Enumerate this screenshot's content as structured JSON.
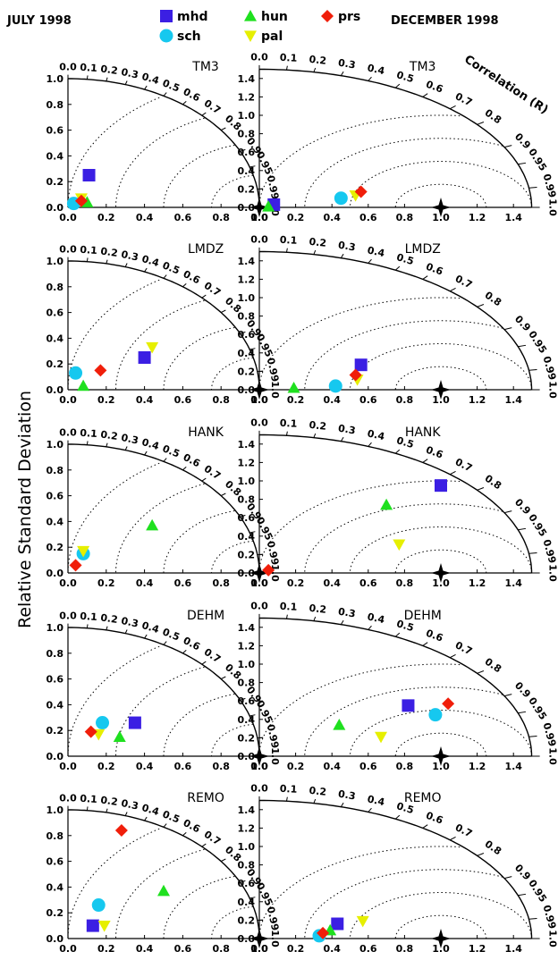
{
  "header": {
    "left": "JULY 1998",
    "right": "DECEMBER 1998"
  },
  "y_label": "Relative Standard Deviation",
  "r_label": "Correlation (R)",
  "chart_data": [
    {
      "type": "taylor",
      "title": "TM3",
      "reference": 1,
      "xlim": [
        0,
        1
      ],
      "ylim": [
        0,
        1
      ],
      "xticks": [
        {
          "value": 0,
          "label": "0.0"
        },
        0.2,
        0.4,
        0.6,
        0.8,
        {
          "value": 1,
          "label": "1.0"
        }
      ],
      "yticks": [
        {
          "value": 0,
          "label": "0.0"
        },
        0.2,
        0.4,
        0.6,
        0.8,
        {
          "value": 1,
          "label": "1.0"
        }
      ],
      "rticks": [
        {
          "value": 0,
          "label": "0.0"
        },
        0.1,
        0.2,
        0.3,
        0.4,
        0.5,
        0.6,
        0.7,
        0.8,
        0.9,
        0.95,
        0.99,
        {
          "value": 1,
          "label": "1.0"
        }
      ],
      "series": [
        {
          "name": "mhd",
          "color": "#3b1fe3",
          "marker": "square",
          "x": [
            0.11
          ],
          "y": [
            0.25
          ]
        },
        {
          "name": "sch",
          "color": "#16c8ef",
          "marker": "circle",
          "x": [
            0.03
          ],
          "y": [
            0.03
          ]
        },
        {
          "name": "hun",
          "color": "#1fe01f",
          "marker": "triangle-up",
          "x": [
            0.1
          ],
          "y": [
            0.04
          ]
        },
        {
          "name": "pal",
          "color": "#e6ef00",
          "marker": "triangle-down",
          "x": [
            0.07
          ],
          "y": [
            0.07
          ]
        },
        {
          "name": "prs",
          "color": "#f01e0a",
          "marker": "diamond",
          "x": [
            0.07
          ],
          "y": [
            0.05
          ]
        }
      ]
    },
    {
      "type": "taylor",
      "title": "TM3",
      "reference": 1,
      "xlim": [
        0,
        1.5
      ],
      "ylim": [
        0,
        1.5
      ],
      "xticks": [
        {
          "value": 0,
          "label": "0.0"
        },
        0.2,
        0.4,
        0.6,
        0.8,
        {
          "value": 1,
          "label": "1.0"
        },
        1.2,
        1.4
      ],
      "yticks": [
        {
          "value": 0,
          "label": "0.0"
        },
        0.2,
        0.4,
        0.6,
        0.8,
        {
          "value": 1,
          "label": "1.0"
        },
        1.2,
        1.4
      ],
      "rticks": [
        {
          "value": 0,
          "label": "0.0"
        },
        0.1,
        0.2,
        0.3,
        0.4,
        0.5,
        0.6,
        0.7,
        0.8,
        0.9,
        0.95,
        0.99,
        {
          "value": 1,
          "label": "1.0"
        }
      ],
      "series": [
        {
          "name": "mhd",
          "color": "#3b1fe3",
          "marker": "square",
          "x": [
            0.08
          ],
          "y": [
            0.03
          ]
        },
        {
          "name": "sch",
          "color": "#16c8ef",
          "marker": "circle",
          "x": [
            0.45
          ],
          "y": [
            0.1
          ]
        },
        {
          "name": "hun",
          "color": "#1fe01f",
          "marker": "triangle-up",
          "x": [
            0.05
          ],
          "y": [
            0.01
          ]
        },
        {
          "name": "pal",
          "color": "#e6ef00",
          "marker": "triangle-down",
          "x": [
            0.53
          ],
          "y": [
            0.13
          ]
        },
        {
          "name": "prs",
          "color": "#f01e0a",
          "marker": "diamond",
          "x": [
            0.56
          ],
          "y": [
            0.17
          ]
        }
      ]
    },
    {
      "type": "taylor",
      "title": "LMDZ",
      "reference": 1,
      "xlim": [
        0,
        1
      ],
      "ylim": [
        0,
        1
      ],
      "xticks": [
        {
          "value": 0,
          "label": "0.0"
        },
        0.2,
        0.4,
        0.6,
        0.8,
        {
          "value": 1,
          "label": "1.0"
        }
      ],
      "yticks": [
        {
          "value": 0,
          "label": "0.0"
        },
        0.2,
        0.4,
        0.6,
        0.8,
        {
          "value": 1,
          "label": "1.0"
        }
      ],
      "rticks": [
        {
          "value": 0,
          "label": "0.0"
        },
        0.1,
        0.2,
        0.3,
        0.4,
        0.5,
        0.6,
        0.7,
        0.8,
        0.9,
        0.95,
        0.99,
        {
          "value": 1,
          "label": "1.0"
        }
      ],
      "series": [
        {
          "name": "mhd",
          "color": "#3b1fe3",
          "marker": "square",
          "x": [
            0.4
          ],
          "y": [
            0.25
          ]
        },
        {
          "name": "sch",
          "color": "#16c8ef",
          "marker": "circle",
          "x": [
            0.04
          ],
          "y": [
            0.13
          ]
        },
        {
          "name": "hun",
          "color": "#1fe01f",
          "marker": "triangle-up",
          "x": [
            0.08
          ],
          "y": [
            0.03
          ]
        },
        {
          "name": "pal",
          "color": "#e6ef00",
          "marker": "triangle-down",
          "x": [
            0.44
          ],
          "y": [
            0.33
          ]
        },
        {
          "name": "prs",
          "color": "#f01e0a",
          "marker": "diamond",
          "x": [
            0.17
          ],
          "y": [
            0.15
          ]
        }
      ]
    },
    {
      "type": "taylor",
      "title": "LMDZ",
      "reference": 1,
      "xlim": [
        0,
        1.5
      ],
      "ylim": [
        0,
        1.5
      ],
      "xticks": [
        {
          "value": 0,
          "label": "0.0"
        },
        0.2,
        0.4,
        0.6,
        0.8,
        {
          "value": 1,
          "label": "1.0"
        },
        1.2,
        1.4
      ],
      "yticks": [
        {
          "value": 0,
          "label": "0.0"
        },
        0.2,
        0.4,
        0.6,
        0.8,
        {
          "value": 1,
          "label": "1.0"
        },
        1.2,
        1.4
      ],
      "rticks": [
        {
          "value": 0,
          "label": "0.0"
        },
        0.1,
        0.2,
        0.3,
        0.4,
        0.5,
        0.6,
        0.7,
        0.8,
        0.9,
        0.95,
        0.99,
        {
          "value": 1,
          "label": "1.0"
        }
      ],
      "series": [
        {
          "name": "mhd",
          "color": "#3b1fe3",
          "marker": "square",
          "x": [
            0.56
          ],
          "y": [
            0.27
          ]
        },
        {
          "name": "sch",
          "color": "#16c8ef",
          "marker": "circle",
          "x": [
            0.42
          ],
          "y": [
            0.04
          ]
        },
        {
          "name": "hun",
          "color": "#1fe01f",
          "marker": "triangle-up",
          "x": [
            0.19
          ],
          "y": [
            0.02
          ]
        },
        {
          "name": "pal",
          "color": "#e6ef00",
          "marker": "triangle-down",
          "x": [
            0.54
          ],
          "y": [
            0.11
          ]
        },
        {
          "name": "prs",
          "color": "#f01e0a",
          "marker": "diamond",
          "x": [
            0.53
          ],
          "y": [
            0.16
          ]
        }
      ]
    },
    {
      "type": "taylor",
      "title": "HANK",
      "reference": 1,
      "xlim": [
        0,
        1
      ],
      "ylim": [
        0,
        1
      ],
      "xticks": [
        {
          "value": 0,
          "label": "0.0"
        },
        0.2,
        0.4,
        0.6,
        0.8,
        {
          "value": 1,
          "label": "1.0"
        }
      ],
      "yticks": [
        {
          "value": 0,
          "label": "0.0"
        },
        0.2,
        0.4,
        0.6,
        0.8,
        {
          "value": 1,
          "label": "1.0"
        }
      ],
      "rticks": [
        {
          "value": 0,
          "label": "0.0"
        },
        0.1,
        0.2,
        0.3,
        0.4,
        0.5,
        0.6,
        0.7,
        0.8,
        0.9,
        0.95,
        0.99,
        {
          "value": 1,
          "label": "1.0"
        }
      ],
      "series": [
        {
          "name": "sch",
          "color": "#16c8ef",
          "marker": "circle",
          "x": [
            0.08
          ],
          "y": [
            0.15
          ]
        },
        {
          "name": "hun",
          "color": "#1fe01f",
          "marker": "triangle-up",
          "x": [
            0.44
          ],
          "y": [
            0.37
          ]
        },
        {
          "name": "pal",
          "color": "#e6ef00",
          "marker": "triangle-down",
          "x": [
            0.08
          ],
          "y": [
            0.17
          ]
        },
        {
          "name": "prs",
          "color": "#f01e0a",
          "marker": "diamond",
          "x": [
            0.04
          ],
          "y": [
            0.06
          ]
        }
      ]
    },
    {
      "type": "taylor",
      "title": "HANK",
      "reference": 1,
      "xlim": [
        0,
        1.5
      ],
      "ylim": [
        0,
        1.5
      ],
      "xticks": [
        {
          "value": 0,
          "label": "0.0"
        },
        0.2,
        0.4,
        0.6,
        0.8,
        {
          "value": 1,
          "label": "1.0"
        },
        1.2,
        1.4
      ],
      "yticks": [
        {
          "value": 0,
          "label": "0.0"
        },
        0.2,
        0.4,
        0.6,
        0.8,
        {
          "value": 1,
          "label": "1.0"
        },
        1.2,
        1.4
      ],
      "rticks": [
        {
          "value": 0,
          "label": "0.0"
        },
        0.1,
        0.2,
        0.3,
        0.4,
        0.5,
        0.6,
        0.7,
        0.8,
        0.9,
        0.95,
        0.99,
        {
          "value": 1,
          "label": "1.0"
        }
      ],
      "series": [
        {
          "name": "mhd",
          "color": "#3b1fe3",
          "marker": "square",
          "x": [
            1.0
          ],
          "y": [
            0.95
          ]
        },
        {
          "name": "hun",
          "color": "#1fe01f",
          "marker": "triangle-up",
          "x": [
            0.7
          ],
          "y": [
            0.74
          ]
        },
        {
          "name": "pal",
          "color": "#e6ef00",
          "marker": "triangle-down",
          "x": [
            0.77
          ],
          "y": [
            0.31
          ]
        },
        {
          "name": "prs",
          "color": "#f01e0a",
          "marker": "diamond",
          "x": [
            0.05
          ],
          "y": [
            0.03
          ]
        }
      ]
    },
    {
      "type": "taylor",
      "title": "DEHM",
      "reference": 1,
      "xlim": [
        0,
        1
      ],
      "ylim": [
        0,
        1
      ],
      "xticks": [
        {
          "value": 0,
          "label": "0.0"
        },
        0.2,
        0.4,
        0.6,
        0.8,
        {
          "value": 1,
          "label": "1.0"
        }
      ],
      "yticks": [
        {
          "value": 0,
          "label": "0.0"
        },
        0.2,
        0.4,
        0.6,
        0.8,
        {
          "value": 1,
          "label": "1.0"
        }
      ],
      "rticks": [
        {
          "value": 0,
          "label": "0.0"
        },
        0.1,
        0.2,
        0.3,
        0.4,
        0.5,
        0.6,
        0.7,
        0.8,
        0.9,
        0.95,
        0.99,
        {
          "value": 1,
          "label": "1.0"
        }
      ],
      "series": [
        {
          "name": "mhd",
          "color": "#3b1fe3",
          "marker": "square",
          "x": [
            0.35
          ],
          "y": [
            0.26
          ]
        },
        {
          "name": "sch",
          "color": "#16c8ef",
          "marker": "circle",
          "x": [
            0.18
          ],
          "y": [
            0.26
          ]
        },
        {
          "name": "hun",
          "color": "#1fe01f",
          "marker": "triangle-up",
          "x": [
            0.27
          ],
          "y": [
            0.15
          ]
        },
        {
          "name": "pal",
          "color": "#e6ef00",
          "marker": "triangle-down",
          "x": [
            0.16
          ],
          "y": [
            0.17
          ]
        },
        {
          "name": "prs",
          "color": "#f01e0a",
          "marker": "diamond",
          "x": [
            0.12
          ],
          "y": [
            0.19
          ]
        }
      ]
    },
    {
      "type": "taylor",
      "title": "DEHM",
      "reference": 1,
      "xlim": [
        0,
        1.5
      ],
      "ylim": [
        0,
        1.5
      ],
      "xticks": [
        {
          "value": 0,
          "label": "0.0"
        },
        0.2,
        0.4,
        0.6,
        0.8,
        {
          "value": 1,
          "label": "1.0"
        },
        1.2,
        1.4
      ],
      "yticks": [
        {
          "value": 0,
          "label": "0.0"
        },
        0.2,
        0.4,
        0.6,
        0.8,
        {
          "value": 1,
          "label": "1.0"
        },
        1.2,
        1.4
      ],
      "rticks": [
        {
          "value": 0,
          "label": "0.0"
        },
        0.1,
        0.2,
        0.3,
        0.4,
        0.5,
        0.6,
        0.7,
        0.8,
        0.9,
        0.95,
        0.99,
        {
          "value": 1,
          "label": "1.0"
        }
      ],
      "series": [
        {
          "name": "mhd",
          "color": "#3b1fe3",
          "marker": "square",
          "x": [
            0.82
          ],
          "y": [
            0.55
          ]
        },
        {
          "name": "sch",
          "color": "#16c8ef",
          "marker": "circle",
          "x": [
            0.97
          ],
          "y": [
            0.45
          ]
        },
        {
          "name": "hun",
          "color": "#1fe01f",
          "marker": "triangle-up",
          "x": [
            0.44
          ],
          "y": [
            0.34
          ]
        },
        {
          "name": "pal",
          "color": "#e6ef00",
          "marker": "triangle-down",
          "x": [
            0.67
          ],
          "y": [
            0.21
          ]
        },
        {
          "name": "prs",
          "color": "#f01e0a",
          "marker": "diamond",
          "x": [
            1.04
          ],
          "y": [
            0.57
          ]
        }
      ]
    },
    {
      "type": "taylor",
      "title": "REMO",
      "reference": 1,
      "xlim": [
        0,
        1
      ],
      "ylim": [
        0,
        1
      ],
      "xticks": [
        {
          "value": 0,
          "label": "0.0"
        },
        0.2,
        0.4,
        0.6,
        0.8,
        {
          "value": 1,
          "label": "1.0"
        }
      ],
      "yticks": [
        {
          "value": 0,
          "label": "0.0"
        },
        0.2,
        0.4,
        0.6,
        0.8,
        {
          "value": 1,
          "label": "1.0"
        }
      ],
      "rticks": [
        {
          "value": 0,
          "label": "0.0"
        },
        0.1,
        0.2,
        0.3,
        0.4,
        0.5,
        0.6,
        0.7,
        0.8,
        0.9,
        0.95,
        0.99,
        {
          "value": 1,
          "label": "1.0"
        }
      ],
      "series": [
        {
          "name": "mhd",
          "color": "#3b1fe3",
          "marker": "square",
          "x": [
            0.13
          ],
          "y": [
            0.1
          ]
        },
        {
          "name": "sch",
          "color": "#16c8ef",
          "marker": "circle",
          "x": [
            0.16
          ],
          "y": [
            0.26
          ]
        },
        {
          "name": "hun",
          "color": "#1fe01f",
          "marker": "triangle-up",
          "x": [
            0.5
          ],
          "y": [
            0.37
          ]
        },
        {
          "name": "pal",
          "color": "#e6ef00",
          "marker": "triangle-down",
          "x": [
            0.19
          ],
          "y": [
            0.1
          ]
        },
        {
          "name": "prs",
          "color": "#f01e0a",
          "marker": "diamond",
          "x": [
            0.28
          ],
          "y": [
            0.84
          ]
        }
      ]
    },
    {
      "type": "taylor",
      "title": "REMO",
      "reference": 1,
      "xlim": [
        0,
        1.5
      ],
      "ylim": [
        0,
        1.5
      ],
      "xticks": [
        {
          "value": 0,
          "label": "0.0"
        },
        0.2,
        0.4,
        0.6,
        0.8,
        {
          "value": 1,
          "label": "1.0"
        },
        1.2,
        1.4
      ],
      "yticks": [
        {
          "value": 0,
          "label": "0.0"
        },
        0.2,
        0.4,
        0.6,
        0.8,
        {
          "value": 1,
          "label": "1.0"
        },
        1.2,
        1.4
      ],
      "rticks": [
        {
          "value": 0,
          "label": "0.0"
        },
        0.1,
        0.2,
        0.3,
        0.4,
        0.5,
        0.6,
        0.7,
        0.8,
        0.9,
        0.95,
        0.99,
        {
          "value": 1,
          "label": "1.0"
        }
      ],
      "series": [
        {
          "name": "mhd",
          "color": "#3b1fe3",
          "marker": "square",
          "x": [
            0.43
          ],
          "y": [
            0.16
          ]
        },
        {
          "name": "sch",
          "color": "#16c8ef",
          "marker": "circle",
          "x": [
            0.33
          ],
          "y": [
            0.03
          ]
        },
        {
          "name": "hun",
          "color": "#1fe01f",
          "marker": "triangle-up",
          "x": [
            0.39
          ],
          "y": [
            0.09
          ]
        },
        {
          "name": "pal",
          "color": "#e6ef00",
          "marker": "triangle-down",
          "x": [
            0.57
          ],
          "y": [
            0.19
          ]
        },
        {
          "name": "prs",
          "color": "#f01e0a",
          "marker": "diamond",
          "x": [
            0.35
          ],
          "y": [
            0.06
          ]
        }
      ]
    }
  ]
}
